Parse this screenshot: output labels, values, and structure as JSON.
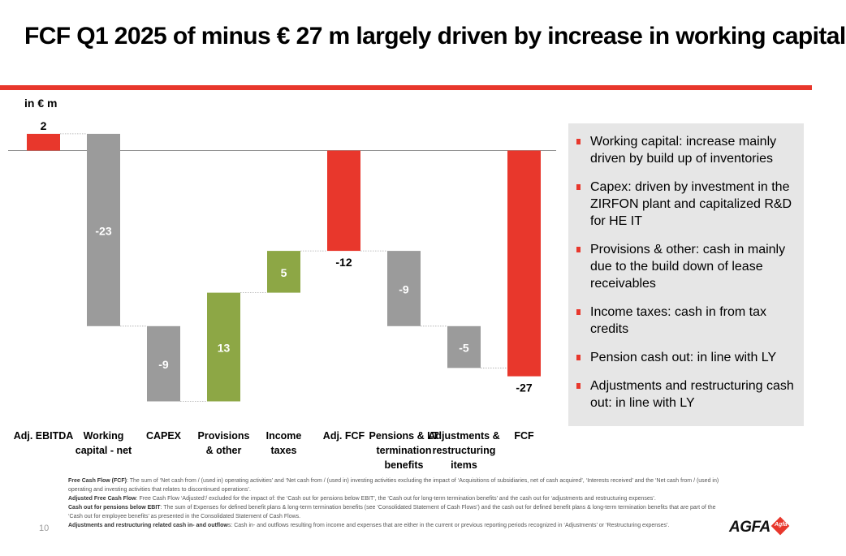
{
  "title": "FCF Q1 2025 of minus € 27 m largely driven by increase in working capital",
  "colors": {
    "accent": "#e8372c",
    "gray": "#9b9b9b",
    "green": "#8da745",
    "panel": "#e6e6e6"
  },
  "chart_data": {
    "type": "bar",
    "subtype": "waterfall",
    "unit_label": "in € m",
    "categories": [
      [
        "Adj. EBITDA"
      ],
      [
        "Working",
        "capital - net"
      ],
      [
        "CAPEX"
      ],
      [
        "Provisions",
        "& other"
      ],
      [
        "Income",
        "taxes"
      ],
      [
        "Adj. FCF"
      ],
      [
        "Pensions & LT",
        "termination",
        "benefits"
      ],
      [
        "Adjustments &",
        "restructuring",
        "items"
      ],
      [
        "FCF"
      ]
    ],
    "values": [
      2,
      -23,
      -9,
      13,
      5,
      -12,
      -9,
      -5,
      -27
    ],
    "value_labels": [
      "2",
      "-23",
      "-9",
      "13",
      "5",
      "-12",
      "-9",
      "-5",
      "-27"
    ],
    "bar_kinds": [
      "total",
      "delta",
      "delta",
      "delta",
      "delta",
      "total",
      "delta",
      "delta",
      "total"
    ],
    "grid": false,
    "legend": "none"
  },
  "notes": [
    "Working capital: increase mainly driven by build up of inventories",
    "Capex: driven by investment in the ZIRFON plant and capitalized R&D for HE IT",
    "Provisions & other: cash in mainly due to the build down of lease receivables",
    "Income taxes: cash in from tax credits",
    "Pension cash out: in line with LY",
    "Adjustments and restructuring cash out: in line with LY"
  ],
  "footnotes": [
    {
      "term": "Free Cash Flow (FCF)",
      "text": ": The sum of ‘Net cash from / (used in) operating activities’ and ‘Net cash from / (used in) investing activities excluding the impact of ‘Acquisitions of subsidiaries, net of cash acquired’, ‘Interests received’ and the ‘Net cash from / (used in) operating and investing activities that relates to discontinued operations’."
    },
    {
      "term": "Adjusted Free Cash Flow",
      "text": ": Free Cash Flow ‘Adjusted’/ excluded for the impact of: the ‘Cash out for pensions below EBIT’, the ‘Cash out for long-term termination benefits’ and the cash out for ‘adjustments and restructuring expenses’."
    },
    {
      "term": "Cash out for pensions below EBIT",
      "text": ": The sum of Expenses for defined benefit plans & long-term termination benefits (see ‘Consolidated Statement of Cash Flows’) and the cash out for defined benefit plans & long-term termination benefits that are part of the ‘Cash out for employee benefits’ as presented in the Consolidated Statement of Cash Flows."
    },
    {
      "term": "Adjustments and restructuring related cash in- and outflow",
      "text": "s: Cash in- and outflows resulting from income and expenses that are either in the current or previous reporting periods recognized in ‘Adjustments’ or ‘Restructuring expenses’."
    }
  ],
  "page_number": "10",
  "logo": {
    "name": "AGFA",
    "mark": "Agfa"
  }
}
